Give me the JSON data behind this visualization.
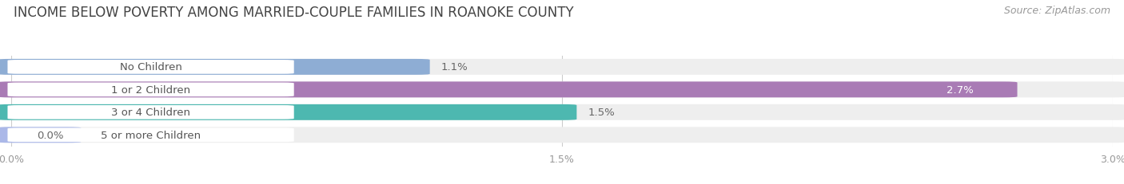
{
  "title": "INCOME BELOW POVERTY AMONG MARRIED-COUPLE FAMILIES IN ROANOKE COUNTY",
  "source": "Source: ZipAtlas.com",
  "categories": [
    "No Children",
    "1 or 2 Children",
    "3 or 4 Children",
    "5 or more Children"
  ],
  "values": [
    1.1,
    2.7,
    1.5,
    0.0
  ],
  "bar_colors": [
    "#8eadd4",
    "#a97bb5",
    "#4db8b0",
    "#abb8e8"
  ],
  "xlim": [
    0,
    3.0
  ],
  "xticks": [
    0.0,
    1.5,
    3.0
  ],
  "xtick_labels": [
    "0.0%",
    "1.5%",
    "3.0%"
  ],
  "value_labels": [
    "1.1%",
    "2.7%",
    "1.5%",
    "0.0%"
  ],
  "value_label_inside": [
    false,
    true,
    false,
    false
  ],
  "bar_height": 0.62,
  "background_color": "#ffffff",
  "bar_bg_color": "#eeeeee",
  "title_fontsize": 12,
  "label_fontsize": 9.5,
  "tick_fontsize": 9,
  "source_fontsize": 9
}
